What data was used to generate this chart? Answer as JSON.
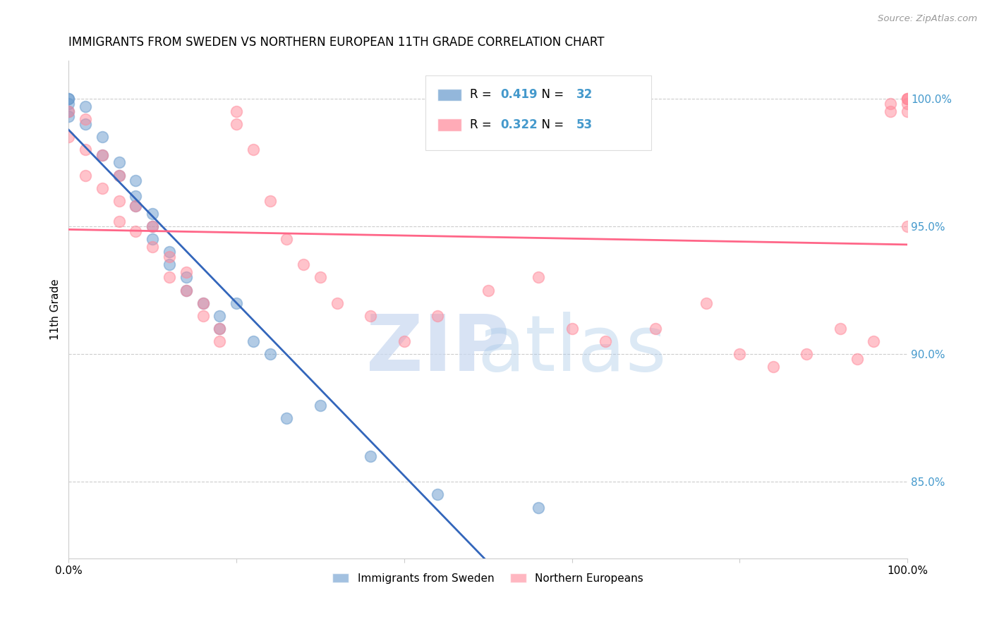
{
  "title": "IMMIGRANTS FROM SWEDEN VS NORTHERN EUROPEAN 11TH GRADE CORRELATION CHART",
  "source": "Source: ZipAtlas.com",
  "ylabel": "11th Grade",
  "xlim": [
    0.0,
    0.05
  ],
  "ylim": [
    82.0,
    101.5
  ],
  "x_tick_positions": [
    0.0,
    0.01,
    0.02,
    0.03,
    0.04,
    0.05
  ],
  "x_tick_labels": [
    "0.0%",
    "",
    "",
    "",
    "",
    ""
  ],
  "y_ticks_right": [
    85.0,
    90.0,
    95.0,
    100.0
  ],
  "y_tick_labels_right": [
    "85.0%",
    "90.0%",
    "95.0%",
    "100.0%"
  ],
  "sweden_R": 0.419,
  "sweden_N": 32,
  "northern_R": 0.322,
  "northern_N": 53,
  "sweden_color": "#6699CC",
  "northern_color": "#FF8899",
  "sweden_line_color": "#3366BB",
  "northern_line_color": "#FF6688",
  "sweden_x": [
    0.0,
    0.0,
    0.0,
    0.0,
    0.0,
    0.001,
    0.001,
    0.002,
    0.002,
    0.003,
    0.003,
    0.004,
    0.004,
    0.004,
    0.005,
    0.005,
    0.005,
    0.006,
    0.006,
    0.007,
    0.007,
    0.008,
    0.009,
    0.009,
    0.01,
    0.011,
    0.012,
    0.013,
    0.015,
    0.018,
    0.022,
    0.028
  ],
  "sweden_y": [
    100.0,
    100.0,
    99.8,
    99.5,
    99.3,
    99.7,
    99.0,
    98.5,
    97.8,
    97.5,
    97.0,
    96.8,
    96.2,
    95.8,
    95.5,
    95.0,
    94.5,
    94.0,
    93.5,
    93.0,
    92.5,
    92.0,
    91.5,
    91.0,
    92.0,
    90.5,
    90.0,
    87.5,
    88.0,
    86.0,
    84.5,
    84.0
  ],
  "northern_x": [
    0.0,
    0.0,
    0.001,
    0.001,
    0.001,
    0.002,
    0.002,
    0.003,
    0.003,
    0.003,
    0.004,
    0.004,
    0.005,
    0.005,
    0.006,
    0.006,
    0.007,
    0.007,
    0.008,
    0.008,
    0.009,
    0.009,
    0.01,
    0.01,
    0.011,
    0.012,
    0.013,
    0.014,
    0.015,
    0.016,
    0.018,
    0.02,
    0.022,
    0.025,
    0.028,
    0.03,
    0.032,
    0.035,
    0.038,
    0.04,
    0.042,
    0.044,
    0.046,
    0.047,
    0.048,
    0.049,
    0.049,
    0.05,
    0.05,
    0.05,
    0.05,
    0.05,
    0.05
  ],
  "northern_y": [
    99.5,
    98.5,
    99.2,
    98.0,
    97.0,
    97.8,
    96.5,
    97.0,
    96.0,
    95.2,
    95.8,
    94.8,
    95.0,
    94.2,
    93.8,
    93.0,
    93.2,
    92.5,
    92.0,
    91.5,
    91.0,
    90.5,
    99.5,
    99.0,
    98.0,
    96.0,
    94.5,
    93.5,
    93.0,
    92.0,
    91.5,
    90.5,
    91.5,
    92.5,
    93.0,
    91.0,
    90.5,
    91.0,
    92.0,
    90.0,
    89.5,
    90.0,
    91.0,
    89.8,
    90.5,
    99.8,
    99.5,
    100.0,
    99.8,
    99.5,
    100.0,
    100.0,
    95.0
  ],
  "reg_xlim": [
    0.0,
    0.05
  ],
  "watermark_zip_color": "#C8D8F0",
  "watermark_atlas_color": "#A8C8E8"
}
